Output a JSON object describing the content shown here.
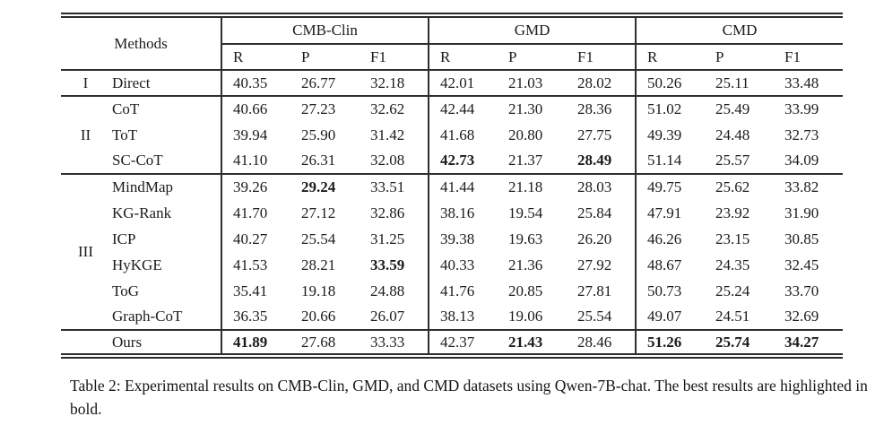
{
  "table": {
    "methods_header": "Methods",
    "col_groups": [
      "CMB-Clin",
      "GMD",
      "CMD"
    ],
    "metric_headers": [
      "R",
      "P",
      "F1"
    ],
    "rows": [
      {
        "group": "I",
        "group_span": 1,
        "method": "Direct",
        "values": [
          "40.35",
          "26.77",
          "32.18",
          "42.01",
          "21.03",
          "28.02",
          "50.26",
          "25.11",
          "33.48"
        ],
        "bold": [],
        "section_end": true
      },
      {
        "group": "II",
        "group_span": 3,
        "method": "CoT",
        "values": [
          "40.66",
          "27.23",
          "32.62",
          "42.44",
          "21.30",
          "28.36",
          "51.02",
          "25.49",
          "33.99"
        ],
        "bold": []
      },
      {
        "method": "ToT",
        "values": [
          "39.94",
          "25.90",
          "31.42",
          "41.68",
          "20.80",
          "27.75",
          "49.39",
          "24.48",
          "32.73"
        ],
        "bold": []
      },
      {
        "method": "SC-CoT",
        "values": [
          "41.10",
          "26.31",
          "32.08",
          "42.73",
          "21.37",
          "28.49",
          "51.14",
          "25.57",
          "34.09"
        ],
        "bold": [
          3,
          5
        ],
        "section_end": true
      },
      {
        "group": "III",
        "group_span": 6,
        "method": "MindMap",
        "values": [
          "39.26",
          "29.24",
          "33.51",
          "41.44",
          "21.18",
          "28.03",
          "49.75",
          "25.62",
          "33.82"
        ],
        "bold": [
          1
        ]
      },
      {
        "method": "KG-Rank",
        "values": [
          "41.70",
          "27.12",
          "32.86",
          "38.16",
          "19.54",
          "25.84",
          "47.91",
          "23.92",
          "31.90"
        ],
        "bold": []
      },
      {
        "method": "ICP",
        "values": [
          "40.27",
          "25.54",
          "31.25",
          "39.38",
          "19.63",
          "26.20",
          "46.26",
          "23.15",
          "30.85"
        ],
        "bold": []
      },
      {
        "method": "HyKGE",
        "values": [
          "41.53",
          "28.21",
          "33.59",
          "40.33",
          "21.36",
          "27.92",
          "48.67",
          "24.35",
          "32.45"
        ],
        "bold": [
          2
        ]
      },
      {
        "method": "ToG",
        "values": [
          "35.41",
          "19.18",
          "24.88",
          "41.76",
          "20.85",
          "27.81",
          "50.73",
          "25.24",
          "33.70"
        ],
        "bold": []
      },
      {
        "method": "Graph-CoT",
        "values": [
          "36.35",
          "20.66",
          "26.07",
          "38.13",
          "19.06",
          "25.54",
          "49.07",
          "24.51",
          "32.69"
        ],
        "bold": [],
        "section_end": true
      },
      {
        "group": "",
        "group_span": 1,
        "method": "Ours",
        "values": [
          "41.89",
          "27.68",
          "33.33",
          "42.37",
          "21.43",
          "28.46",
          "51.26",
          "25.74",
          "34.27"
        ],
        "bold": [
          0,
          4,
          6,
          7,
          8
        ]
      }
    ]
  },
  "caption": "Table 2: Experimental results on CMB-Clin, GMD, and CMD datasets using Qwen-7B-chat. The best results are highlighted in bold."
}
